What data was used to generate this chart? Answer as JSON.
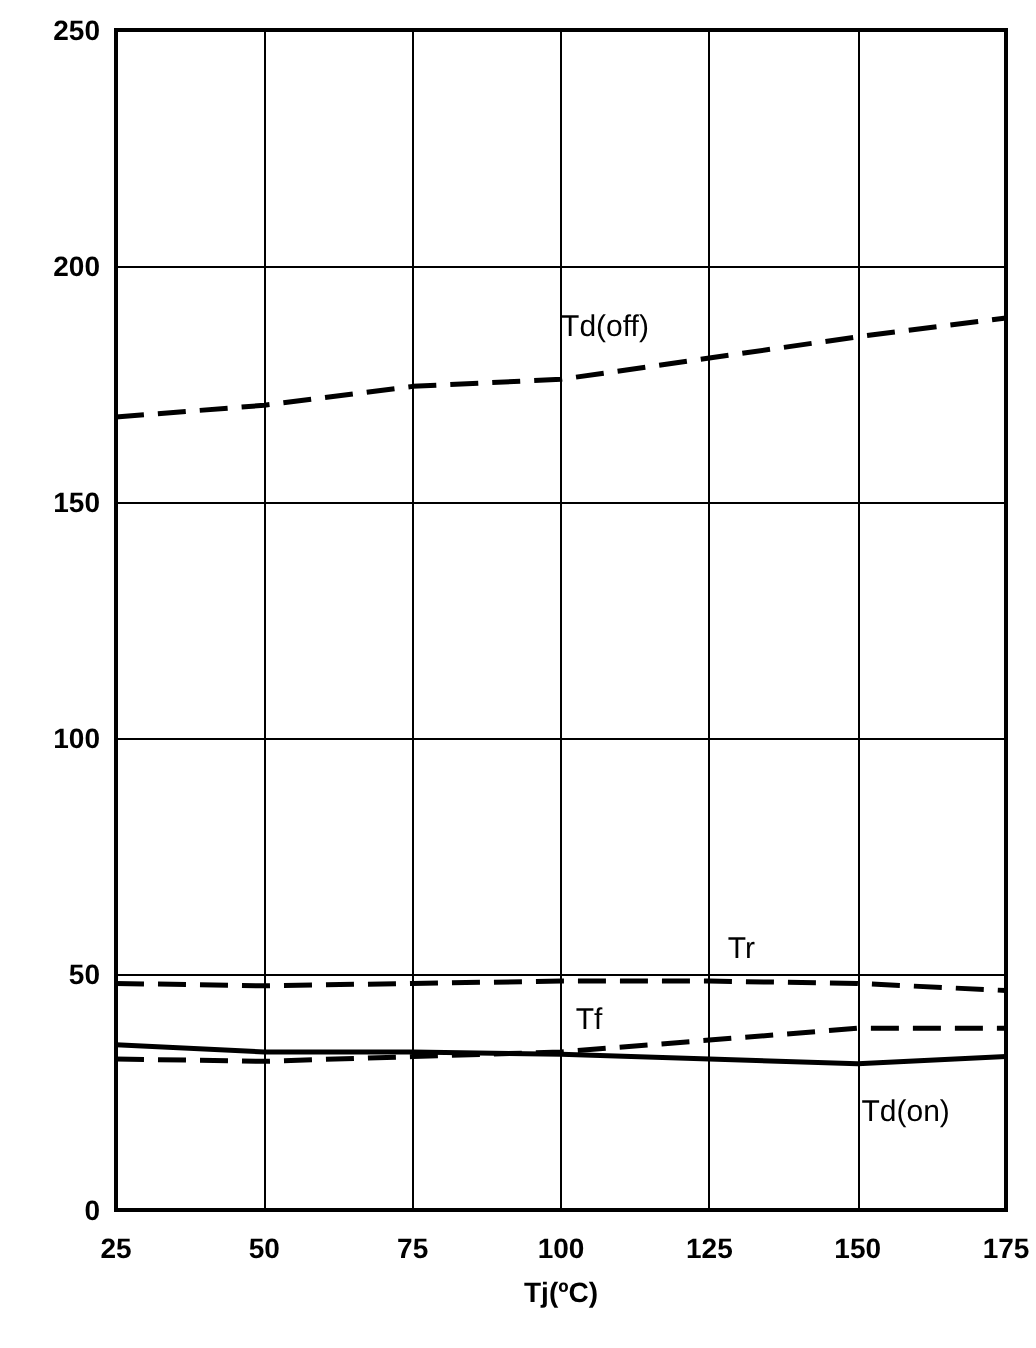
{
  "chart_data": {
    "type": "line",
    "xlabel": "Tj(ºC)",
    "x": [
      25,
      50,
      75,
      100,
      125,
      150,
      175
    ],
    "xlim": [
      25,
      175
    ],
    "xticks": [
      25,
      50,
      75,
      100,
      125,
      150,
      175
    ],
    "ylim": [
      0,
      250
    ],
    "yticks": [
      0,
      50,
      100,
      150,
      200,
      250
    ],
    "grid": true,
    "legend": false,
    "marker": "none",
    "series": [
      {
        "name": "Td(off)",
        "color": "#000000",
        "line_style": "dashed",
        "values": [
          168,
          170.5,
          174.5,
          176,
          180.5,
          185,
          189
        ]
      },
      {
        "name": "Tr",
        "color": "#000000",
        "line_style": "dashed",
        "values": [
          48,
          47.5,
          48,
          48.5,
          48.5,
          48,
          46.5
        ]
      },
      {
        "name": "Tf",
        "color": "#000000",
        "line_style": "dashed",
        "values": [
          32,
          31.5,
          32.5,
          33.5,
          36,
          38.5,
          38.5
        ]
      },
      {
        "name": "Td(on)",
        "color": "#000000",
        "line_style": "solid",
        "values": [
          35,
          33.5,
          33.5,
          33,
          32,
          31,
          32.5
        ]
      }
    ]
  }
}
